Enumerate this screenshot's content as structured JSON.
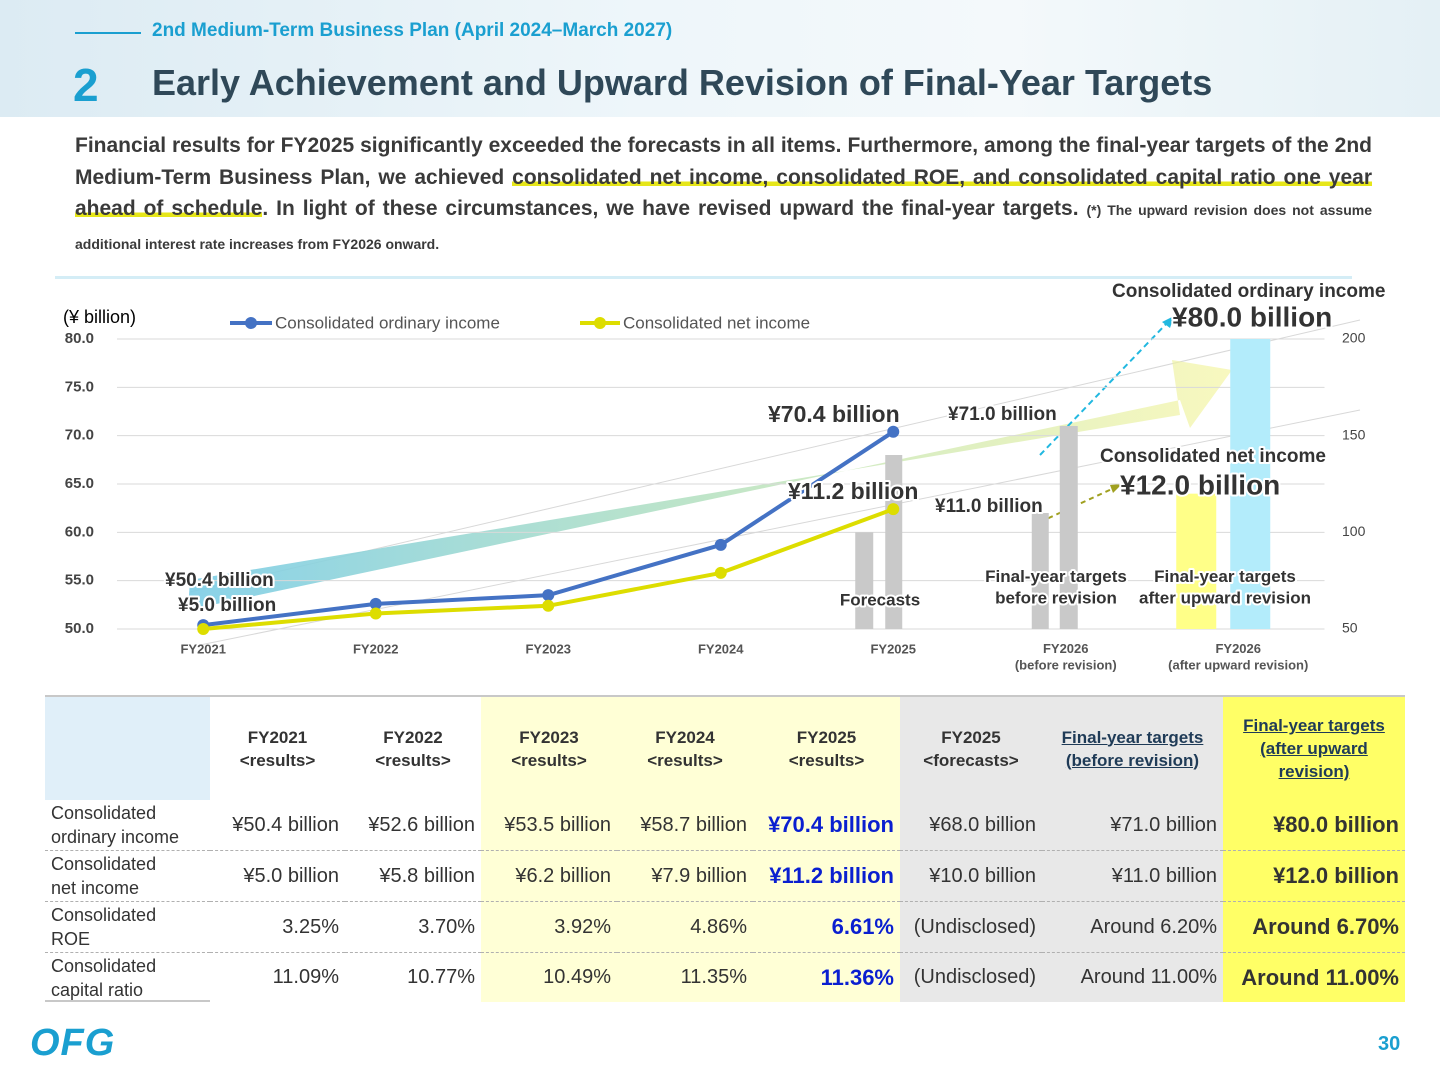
{
  "header": {
    "subtitle": "2nd Medium-Term Business Plan (April 2024–March 2027)",
    "number": "2",
    "title": "Early Achievement and Upward Revision of Final-Year Targets"
  },
  "summary": {
    "parts": [
      "Financial results for FY2025 significantly exceeded the forecasts in all items. Furthermore, among the final-year targets of the 2nd Medium-Term Business Plan, we achieved ",
      "consolidated net income, consolidated ROE, and consolidated capital ratio one year ahead of schedule",
      ". In light of these circumstances, we have revised upward the final-year targets. "
    ],
    "note": "(*) The upward revision does not assume additional interest rate increases from FY2026 onward."
  },
  "chart_data": {
    "type": "line",
    "unit_label": "(¥ billion)",
    "categories": [
      "FY2021",
      "FY2022",
      "FY2023",
      "FY2024",
      "FY2025",
      "FY2026\n(before revision)",
      "FY2026\n(after upward revision)"
    ],
    "ylim": [
      50,
      80
    ],
    "yticks": [
      {
        "value": 50,
        "label": "50.0"
      },
      {
        "value": 55,
        "label": "55.0"
      },
      {
        "value": 60,
        "label": "60.0"
      },
      {
        "value": 65,
        "label": "65.0"
      },
      {
        "value": 70,
        "label": "70.0"
      },
      {
        "value": 75,
        "label": "75.0"
      },
      {
        "value": 80,
        "label": "80.0"
      }
    ],
    "y2lim": [
      50,
      200
    ],
    "y2ticks": [
      50,
      100,
      150,
      200
    ],
    "y3lim": [
      5,
      20
    ],
    "grid": true,
    "series": [
      {
        "name": "Consolidated ordinary income",
        "color": "#4472c4",
        "values": [
          50.4,
          52.6,
          53.5,
          58.7,
          70.4,
          null,
          null
        ],
        "value_labels": [
          "¥50.4 billion",
          null,
          null,
          null,
          "¥70.4 billion",
          null,
          null
        ]
      },
      {
        "name": "Consolidated net income",
        "color": "#dddd00",
        "axis": "y3",
        "values": [
          5.0,
          5.8,
          6.2,
          7.9,
          11.2,
          null,
          null
        ],
        "value_labels": [
          "¥5.0 billion",
          null,
          null,
          null,
          "¥11.2 billion",
          null,
          null
        ]
      },
      {
        "type": "bar",
        "colors": [
          null,
          null,
          null,
          null,
          "#c9c9c9",
          "#c9c9c9",
          "#b3ecfb"
        ],
        "values": [
          null,
          null,
          null,
          null,
          68.0,
          71.0,
          80.0
        ],
        "value_labels": [
          null,
          null,
          null,
          null,
          null,
          "¥71.0 billion",
          "¥80.0 billion"
        ]
      },
      {
        "type": "bar",
        "axis": "y3",
        "colors": [
          null,
          null,
          null,
          null,
          "#c9c9c9",
          "#c9c9c9",
          "#ffff88"
        ],
        "values": [
          null,
          null,
          null,
          null,
          10.0,
          11.0,
          12.0
        ],
        "value_labels": [
          null,
          null,
          null,
          null,
          null,
          "¥11.0 billion",
          "¥12.0 billion"
        ]
      }
    ],
    "annotations": [
      "Forecasts",
      "Final-year targets\nbefore revision",
      "Final-year targets\nafter upward revision",
      "Consolidated ordinary income",
      "Consolidated net income"
    ]
  },
  "table": {
    "header": [
      "FY2021\n<results>",
      "FY2022\n<results>",
      "FY2023\n<results>",
      "FY2024\n<results>",
      "FY2025\n<results>",
      "FY2025\n<forecasts>",
      "Final-year targets\n(before revision)",
      "Final-year targets\n(after upward\nrevision)"
    ],
    "rows": [
      {
        "label": "Consolidated\nordinary income",
        "cells": [
          "¥50.4 billion",
          "¥52.6 billion",
          "¥53.5 billion",
          "¥58.7 billion",
          "¥70.4 billion",
          "¥68.0 billion",
          "¥71.0 billion",
          "¥80.0 billion"
        ]
      },
      {
        "label": "Consolidated\nnet income",
        "cells": [
          "¥5.0 billion",
          "¥5.8 billion",
          "¥6.2 billion",
          "¥7.9 billion",
          "¥11.2 billion",
          "¥10.0 billion",
          "¥11.0 billion",
          "¥12.0 billion"
        ]
      },
      {
        "label": "Consolidated\nROE",
        "cells": [
          "3.25%",
          "3.70%",
          "3.92%",
          "4.86%",
          "6.61%",
          "(Undisclosed)",
          "Around 6.20%",
          "Around 6.70%"
        ]
      },
      {
        "label": "Consolidated\ncapital ratio",
        "cells": [
          "11.09%",
          "10.77%",
          "10.49%",
          "11.35%",
          "11.36%",
          "(Undisclosed)",
          "Around 11.00%",
          "Around 11.00%"
        ]
      }
    ]
  },
  "footer": {
    "logo": "OFG",
    "page": "30"
  }
}
